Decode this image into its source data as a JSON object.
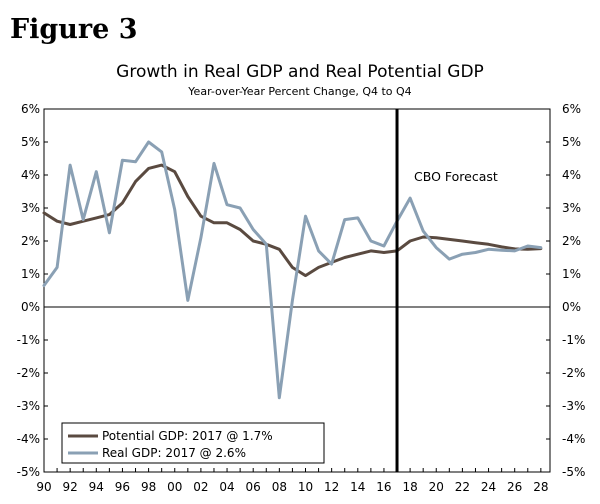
{
  "figure_label": "Figure 3",
  "chart_data": {
    "type": "line",
    "title": "Growth in Real GDP and Real Potential GDP",
    "subtitle": "Year-over-Year Percent Change, Q4 to Q4",
    "xlabel": "",
    "ylabel": "",
    "x": [
      1990,
      1991,
      1992,
      1993,
      1994,
      1995,
      1996,
      1997,
      1998,
      1999,
      2000,
      2001,
      2002,
      2003,
      2004,
      2005,
      2006,
      2007,
      2008,
      2009,
      2010,
      2011,
      2012,
      2013,
      2014,
      2015,
      2016,
      2017,
      2018,
      2019,
      2020,
      2021,
      2022,
      2023,
      2024,
      2025,
      2026,
      2027,
      2028
    ],
    "xlim": [
      1990,
      2028.7
    ],
    "xticks": [
      1990,
      1992,
      1994,
      1996,
      1998,
      2000,
      2002,
      2004,
      2006,
      2008,
      2010,
      2012,
      2014,
      2016,
      2018,
      2020,
      2022,
      2024,
      2026,
      2028
    ],
    "xtick_labels": [
      "90",
      "92",
      "94",
      "96",
      "98",
      "00",
      "02",
      "04",
      "06",
      "08",
      "10",
      "12",
      "14",
      "16",
      "18",
      "20",
      "22",
      "24",
      "26",
      "28"
    ],
    "ylim": [
      -5,
      6
    ],
    "yticks": [
      -5,
      -4,
      -3,
      -2,
      -1,
      0,
      1,
      2,
      3,
      4,
      5,
      6
    ],
    "ytick_labels": [
      "-5%",
      "-4%",
      "-3%",
      "-2%",
      "-1%",
      "0%",
      "1%",
      "2%",
      "3%",
      "4%",
      "5%",
      "6%"
    ],
    "grid": false,
    "legend_position": "bottom-left",
    "series": [
      {
        "name": "Potential GDP: 2017 @ 1.7%",
        "color": "#5a4a40",
        "values": [
          2.85,
          2.6,
          2.5,
          2.6,
          2.7,
          2.8,
          3.15,
          3.8,
          4.2,
          4.3,
          4.1,
          3.35,
          2.75,
          2.55,
          2.55,
          2.35,
          2.0,
          1.9,
          1.75,
          1.2,
          0.95,
          1.2,
          1.35,
          1.5,
          1.6,
          1.7,
          1.65,
          1.7,
          2.0,
          2.12,
          2.1,
          2.05,
          2.0,
          1.95,
          1.9,
          1.82,
          1.76,
          1.75,
          1.77
        ]
      },
      {
        "name": "Real GDP: 2017 @ 2.6%",
        "color": "#8aa0b4",
        "values": [
          0.65,
          1.2,
          4.3,
          2.65,
          4.1,
          2.25,
          4.45,
          4.4,
          5.0,
          4.7,
          2.95,
          0.2,
          2.1,
          4.35,
          3.1,
          3.0,
          2.35,
          1.9,
          -2.75,
          0.2,
          2.75,
          1.7,
          1.3,
          2.65,
          2.7,
          2.0,
          1.85,
          2.6,
          3.3,
          2.3,
          1.8,
          1.45,
          1.6,
          1.65,
          1.75,
          1.72,
          1.7,
          1.85,
          1.8
        ]
      }
    ],
    "forecast_line_x": 2017,
    "annotations": [
      {
        "text": "CBO Forecast"
      }
    ]
  }
}
